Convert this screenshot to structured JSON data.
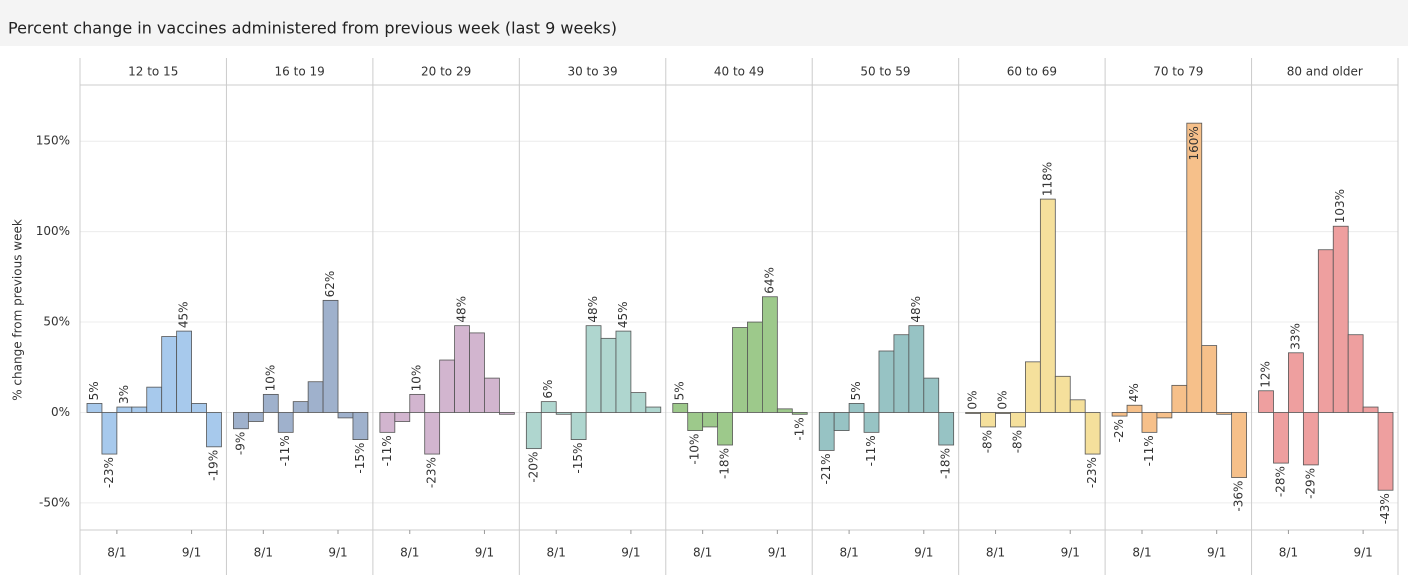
{
  "chart_data": {
    "type": "bar",
    "title": "Percent change in vaccines administered from previous week (last 9 weeks)",
    "y_label": "% change from previous week",
    "ylim": [
      -65,
      180
    ],
    "yticks": [
      {
        "value": -50,
        "label": "-50%"
      },
      {
        "value": 0,
        "label": "0%"
      },
      {
        "value": 50,
        "label": "50%"
      },
      {
        "value": 100,
        "label": "100%"
      },
      {
        "value": 150,
        "label": "150%"
      }
    ],
    "grid": true,
    "categories": [
      null,
      null,
      "8/1",
      null,
      null,
      null,
      null,
      "9/1",
      null
    ],
    "series": [
      {
        "name": "12 to 15",
        "color": "#a7c9ec",
        "values": [
          5,
          -23,
          3,
          3,
          14,
          42,
          45,
          5,
          -19
        ],
        "value_labels": [
          "5%",
          "-23%",
          "3%",
          null,
          null,
          null,
          "45%",
          null,
          "-19%"
        ]
      },
      {
        "name": "16 to 19",
        "color": "#9fb1cc",
        "values": [
          -9,
          -5,
          10,
          -11,
          6,
          17,
          62,
          -3,
          -15
        ],
        "value_labels": [
          "-9%",
          null,
          "10%",
          "-11%",
          null,
          null,
          "62%",
          null,
          "-15%"
        ]
      },
      {
        "name": "20 to 29",
        "color": "#d2b5cf",
        "values": [
          -11,
          -5,
          10,
          -23,
          29,
          48,
          44,
          19,
          -1
        ],
        "value_labels": [
          "-11%",
          null,
          "10%",
          "-23%",
          null,
          "48%",
          null,
          null,
          null
        ]
      },
      {
        "name": "30 to 39",
        "color": "#afd6cf",
        "values": [
          -20,
          6,
          -1,
          -15,
          48,
          41,
          45,
          11,
          3
        ],
        "value_labels": [
          "-20%",
          "6%",
          null,
          "-15%",
          "48%",
          null,
          "45%",
          null,
          null
        ]
      },
      {
        "name": "40 to 49",
        "color": "#9dc98b",
        "values": [
          5,
          -10,
          -8,
          -18,
          47,
          50,
          64,
          2,
          -1
        ],
        "value_labels": [
          "5%",
          "-10%",
          null,
          "-18%",
          null,
          null,
          "64%",
          null,
          "-1%"
        ]
      },
      {
        "name": "50 to 59",
        "color": "#97c3c4",
        "values": [
          -21,
          -10,
          5,
          -11,
          34,
          43,
          48,
          19,
          -18
        ],
        "value_labels": [
          "-21%",
          null,
          "5%",
          "-11%",
          null,
          null,
          "48%",
          null,
          "-18%"
        ]
      },
      {
        "name": "60 to 69",
        "color": "#f5e09c",
        "values": [
          0,
          -8,
          0,
          -8,
          28,
          118,
          20,
          7,
          -23
        ],
        "value_labels": [
          "0%",
          "-8%",
          "0%",
          "-8%",
          null,
          "118%",
          null,
          null,
          "-23%"
        ]
      },
      {
        "name": "70 to 79",
        "color": "#f6c08a",
        "values": [
          -2,
          4,
          -11,
          -3,
          15,
          160,
          37,
          -1,
          -36
        ],
        "value_labels": [
          "-2%",
          "4%",
          "-11%",
          null,
          null,
          "160%",
          null,
          null,
          "-36%"
        ]
      },
      {
        "name": "80 and older",
        "color": "#ee9f9f",
        "values": [
          12,
          -28,
          33,
          -29,
          90,
          103,
          43,
          3,
          -43
        ],
        "value_labels": [
          "12%",
          "-28%",
          "33%",
          "-29%",
          null,
          "103%",
          null,
          null,
          "-43%"
        ]
      }
    ]
  }
}
